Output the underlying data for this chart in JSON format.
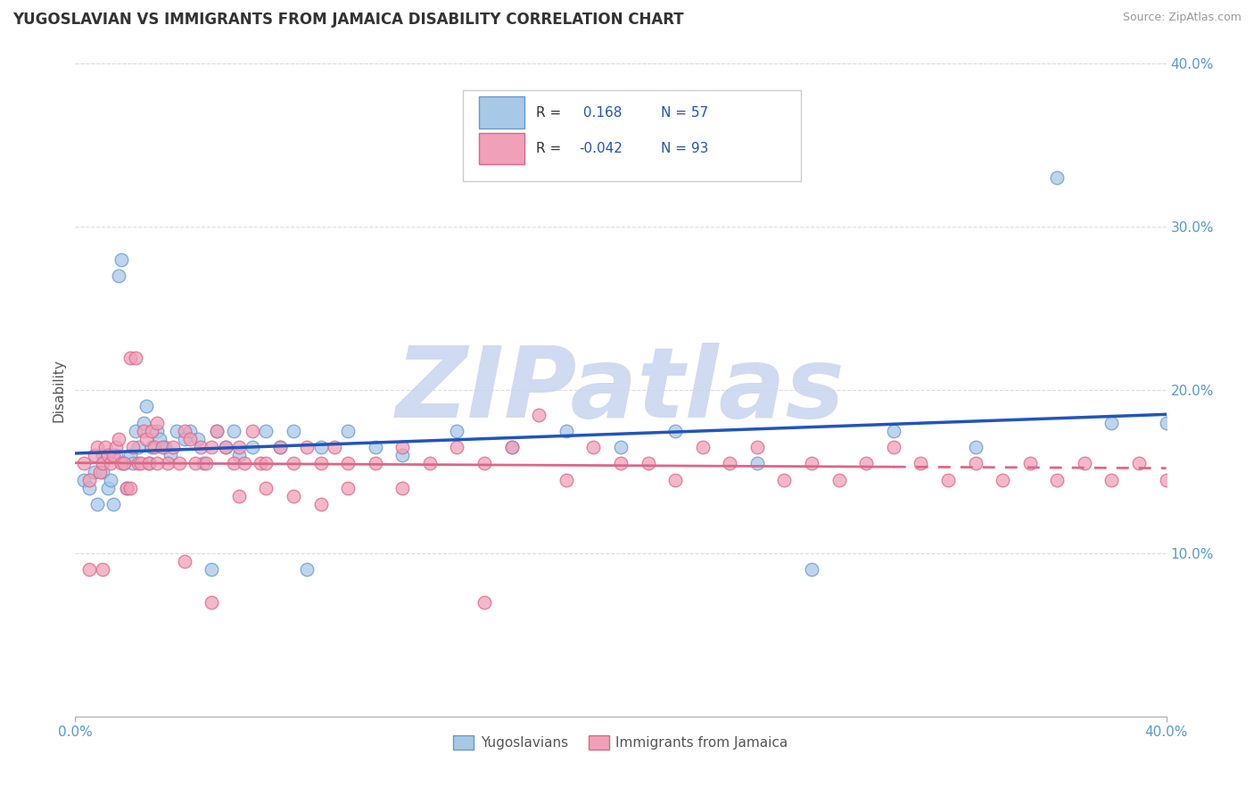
{
  "title": "YUGOSLAVIAN VS IMMIGRANTS FROM JAMAICA DISABILITY CORRELATION CHART",
  "source": "Source: ZipAtlas.com",
  "ylabel": "Disability",
  "xlim": [
    0.0,
    0.4
  ],
  "ylim": [
    0.0,
    0.4
  ],
  "right_yticks": [
    0.1,
    0.2,
    0.3,
    0.4
  ],
  "right_yticklabels": [
    "10.0%",
    "20.0%",
    "30.0%",
    "40.0%"
  ],
  "x_edge_labels": [
    "0.0%",
    "40.0%"
  ],
  "series": [
    {
      "name": "Yugoslavians",
      "R": 0.168,
      "N": 57,
      "color_scatter": "#a8c8e8",
      "color_edge": "#6699cc",
      "color_line": "#2255bb",
      "line_style": "solid",
      "x": [
        0.003,
        0.005,
        0.007,
        0.008,
        0.01,
        0.01,
        0.012,
        0.013,
        0.014,
        0.015,
        0.016,
        0.017,
        0.018,
        0.019,
        0.02,
        0.021,
        0.022,
        0.023,
        0.025,
        0.026,
        0.027,
        0.028,
        0.03,
        0.031,
        0.033,
        0.035,
        0.037,
        0.04,
        0.042,
        0.045,
        0.047,
        0.05,
        0.052,
        0.055,
        0.058,
        0.06,
        0.065,
        0.07,
        0.075,
        0.08,
        0.085,
        0.09,
        0.1,
        0.11,
        0.12,
        0.14,
        0.16,
        0.18,
        0.2,
        0.22,
        0.25,
        0.27,
        0.3,
        0.33,
        0.36,
        0.38,
        0.4
      ],
      "y": [
        0.145,
        0.14,
        0.15,
        0.13,
        0.16,
        0.15,
        0.14,
        0.145,
        0.13,
        0.16,
        0.27,
        0.28,
        0.155,
        0.14,
        0.16,
        0.155,
        0.175,
        0.165,
        0.18,
        0.19,
        0.155,
        0.165,
        0.175,
        0.17,
        0.165,
        0.16,
        0.175,
        0.17,
        0.175,
        0.17,
        0.155,
        0.09,
        0.175,
        0.165,
        0.175,
        0.16,
        0.165,
        0.175,
        0.165,
        0.175,
        0.09,
        0.165,
        0.175,
        0.165,
        0.16,
        0.175,
        0.165,
        0.175,
        0.165,
        0.175,
        0.155,
        0.09,
        0.175,
        0.165,
        0.33,
        0.18,
        0.18
      ]
    },
    {
      "name": "Immigrants from Jamaica",
      "R": -0.042,
      "N": 93,
      "color_scatter": "#f0a0b8",
      "color_edge": "#dd6688",
      "color_line": "#dd6688",
      "line_style": "dashed",
      "x": [
        0.003,
        0.005,
        0.007,
        0.008,
        0.009,
        0.01,
        0.011,
        0.012,
        0.013,
        0.014,
        0.015,
        0.016,
        0.017,
        0.018,
        0.019,
        0.02,
        0.021,
        0.022,
        0.023,
        0.024,
        0.025,
        0.026,
        0.027,
        0.028,
        0.029,
        0.03,
        0.032,
        0.034,
        0.036,
        0.038,
        0.04,
        0.042,
        0.044,
        0.046,
        0.048,
        0.05,
        0.052,
        0.055,
        0.058,
        0.06,
        0.062,
        0.065,
        0.068,
        0.07,
        0.075,
        0.08,
        0.085,
        0.09,
        0.095,
        0.1,
        0.11,
        0.12,
        0.13,
        0.14,
        0.15,
        0.16,
        0.17,
        0.18,
        0.19,
        0.2,
        0.21,
        0.22,
        0.23,
        0.24,
        0.25,
        0.26,
        0.27,
        0.28,
        0.29,
        0.3,
        0.31,
        0.32,
        0.33,
        0.34,
        0.35,
        0.36,
        0.37,
        0.38,
        0.39,
        0.4,
        0.005,
        0.01,
        0.02,
        0.03,
        0.04,
        0.05,
        0.06,
        0.07,
        0.08,
        0.09,
        0.1,
        0.12,
        0.15
      ],
      "y": [
        0.155,
        0.145,
        0.16,
        0.165,
        0.15,
        0.155,
        0.165,
        0.16,
        0.155,
        0.16,
        0.165,
        0.17,
        0.155,
        0.155,
        0.14,
        0.22,
        0.165,
        0.22,
        0.155,
        0.155,
        0.175,
        0.17,
        0.155,
        0.175,
        0.165,
        0.18,
        0.165,
        0.155,
        0.165,
        0.155,
        0.175,
        0.17,
        0.155,
        0.165,
        0.155,
        0.165,
        0.175,
        0.165,
        0.155,
        0.165,
        0.155,
        0.175,
        0.155,
        0.155,
        0.165,
        0.155,
        0.165,
        0.155,
        0.165,
        0.155,
        0.155,
        0.165,
        0.155,
        0.165,
        0.155,
        0.165,
        0.185,
        0.145,
        0.165,
        0.155,
        0.155,
        0.145,
        0.165,
        0.155,
        0.165,
        0.145,
        0.155,
        0.145,
        0.155,
        0.165,
        0.155,
        0.145,
        0.155,
        0.145,
        0.155,
        0.145,
        0.155,
        0.145,
        0.155,
        0.145,
        0.09,
        0.09,
        0.14,
        0.155,
        0.095,
        0.07,
        0.135,
        0.14,
        0.135,
        0.13,
        0.14,
        0.14,
        0.07
      ]
    }
  ],
  "watermark": "ZIPatlas",
  "watermark_color_zip": "#c8d4ee",
  "watermark_color_atlas": "#c8b8d8",
  "background_color": "#ffffff",
  "grid_color": "#dddddd",
  "title_color": "#333333",
  "ylabel_color": "#555555",
  "axis_tick_color": "#5599cc",
  "legend_border_color": "#cccccc",
  "legend_text_color": "#333333",
  "legend_R_value_color": "#2255aa",
  "legend_N_color": "#2255aa",
  "figsize": [
    14.06,
    8.92
  ],
  "dpi": 100
}
